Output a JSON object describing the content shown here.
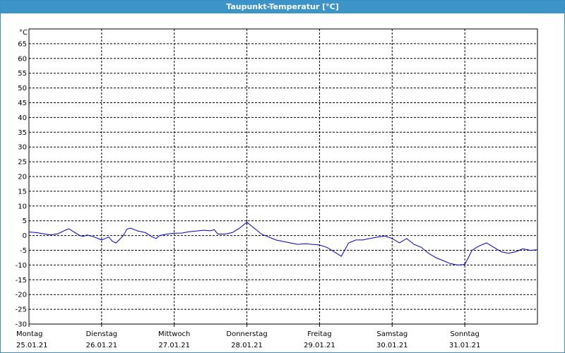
{
  "window": {
    "title": "Taupunkt-Temperatur [°C]"
  },
  "colors": {
    "titlebar": "#3d94c8",
    "series": "#0000cc",
    "grid": "#000000",
    "background": "#ffffff"
  },
  "chart_data": {
    "type": "line",
    "title": "Taupunkt-Temperatur [°C]",
    "ylabel": "°C",
    "ylim": [
      -30,
      70
    ],
    "yticks": [
      -30,
      -25,
      -20,
      -15,
      -10,
      -5,
      0,
      5,
      10,
      15,
      20,
      25,
      30,
      35,
      40,
      45,
      50,
      55,
      60,
      65
    ],
    "xlim": [
      0,
      7
    ],
    "grid": true,
    "x_labels": [
      {
        "day": "Montag",
        "date": "25.01.21"
      },
      {
        "day": "Dienstag",
        "date": "26.01.21"
      },
      {
        "day": "Mittwoch",
        "date": "27.01.21"
      },
      {
        "day": "Donnerstag",
        "date": "28.01.21"
      },
      {
        "day": "Freitag",
        "date": "29.01.21"
      },
      {
        "day": "Samstag",
        "date": "30.01.21"
      },
      {
        "day": "Sonntag",
        "date": "31.01.21"
      }
    ],
    "series": [
      {
        "x": [
          0,
          0.1,
          0.2,
          0.3,
          0.4,
          0.5,
          0.55,
          0.6,
          0.7,
          0.75,
          0.8,
          0.9,
          1.0,
          1.1,
          1.15,
          1.2,
          1.3,
          1.35,
          1.4,
          1.5,
          1.6,
          1.7,
          1.75,
          1.8,
          1.9,
          2.0,
          2.1,
          2.2,
          2.3,
          2.4,
          2.5,
          2.55,
          2.6,
          2.7,
          2.8,
          2.9,
          3.0,
          3.1,
          3.2,
          3.3,
          3.4,
          3.5,
          3.6,
          3.7,
          3.8,
          3.9,
          4.0,
          4.1,
          4.2,
          4.3,
          4.4,
          4.5,
          4.6,
          4.65,
          4.7,
          4.8,
          4.9,
          5.0,
          5.1,
          5.2,
          5.3,
          5.4,
          5.5,
          5.6,
          5.7,
          5.8,
          5.9,
          6.0,
          6.1,
          6.2,
          6.3,
          6.4,
          6.5,
          6.6,
          6.7,
          6.8,
          6.9,
          7.0
        ],
        "values": [
          1.2,
          1.0,
          0.6,
          0.2,
          0.6,
          1.8,
          2.3,
          1.5,
          0.0,
          -0.3,
          0.2,
          -0.5,
          -1.5,
          -0.5,
          -2.0,
          -2.5,
          0.0,
          2.2,
          2.5,
          1.5,
          1.0,
          -0.5,
          -1.0,
          0.0,
          0.5,
          0.8,
          0.8,
          1.3,
          1.5,
          1.8,
          1.6,
          2.0,
          0.5,
          0.5,
          1.0,
          2.5,
          4.5,
          2.5,
          0.5,
          -0.5,
          -1.5,
          -2.0,
          -2.5,
          -3.0,
          -2.8,
          -3.0,
          -3.2,
          -4.0,
          -5.5,
          -7.0,
          -2.5,
          -1.5,
          -1.5,
          -1.2,
          -1.0,
          -0.5,
          -0.2,
          -1.0,
          -2.5,
          -1.0,
          -3.0,
          -4.0,
          -6.0,
          -7.5,
          -8.5,
          -9.5,
          -10.0,
          -9.8,
          -5.0,
          -3.5,
          -2.5,
          -4.0,
          -5.5,
          -6.0,
          -5.5,
          -4.5,
          -5.0,
          -4.8
        ]
      }
    ]
  }
}
